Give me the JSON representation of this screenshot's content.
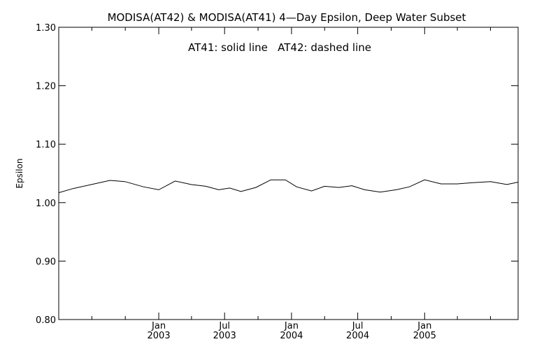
{
  "chart_data": {
    "type": "line",
    "title": "MODISA(AT42) & MODISA(AT41) 4—Day Epsilon, Deep Water Subset",
    "annotation": "AT41: solid line   AT42: dashed line",
    "xlabel": "",
    "ylabel": "Epsilon",
    "ylim": [
      0.8,
      1.3
    ],
    "xlim": [
      "2002-04-01",
      "2005-09-15"
    ],
    "yticks": [
      {
        "value": 0.8,
        "label": "0.80"
      },
      {
        "value": 0.9,
        "label": "0.90"
      },
      {
        "value": 1.0,
        "label": "1.00"
      },
      {
        "value": 1.1,
        "label": "1.10"
      },
      {
        "value": 1.2,
        "label": "1.20"
      },
      {
        "value": 1.3,
        "label": "1.30"
      }
    ],
    "xticks": [
      {
        "date": "2003-01-01",
        "label_top": "Jan",
        "label_bottom": "2003"
      },
      {
        "date": "2003-07-01",
        "label_top": "Jul",
        "label_bottom": "2003"
      },
      {
        "date": "2004-01-01",
        "label_top": "Jan",
        "label_bottom": "2004"
      },
      {
        "date": "2004-07-01",
        "label_top": "Jul",
        "label_bottom": "2004"
      },
      {
        "date": "2005-01-01",
        "label_top": "Jan",
        "label_bottom": "2005"
      }
    ],
    "minor_ticks": [
      "2002-07-01",
      "2002-10-01",
      "2003-04-01",
      "2003-10-01",
      "2004-04-01",
      "2004-10-01",
      "2005-04-01",
      "2005-07-01"
    ],
    "grid": false,
    "series": [
      {
        "style": "solid",
        "x": [
          "2002-04-01",
          "2002-05-10",
          "2002-06-30",
          "2002-08-20",
          "2002-09-30",
          "2002-11-20",
          "2003-01-01",
          "2003-02-15",
          "2003-03-31",
          "2003-05-10",
          "2003-06-15",
          "2003-07-15",
          "2003-08-15",
          "2003-09-25",
          "2003-11-05",
          "2003-12-15",
          "2004-01-15",
          "2004-02-25",
          "2004-04-01",
          "2004-05-10",
          "2004-06-15",
          "2004-07-20",
          "2004-09-01",
          "2004-10-15",
          "2004-11-20",
          "2005-01-01",
          "2005-02-15",
          "2005-04-01",
          "2005-05-10",
          "2005-07-01",
          "2005-08-15",
          "2005-09-15"
        ],
        "y": [
          1.017,
          1.024,
          1.031,
          1.038,
          1.036,
          1.027,
          1.022,
          1.037,
          1.031,
          1.028,
          1.022,
          1.025,
          1.019,
          1.026,
          1.039,
          1.039,
          1.027,
          1.02,
          1.028,
          1.026,
          1.029,
          1.022,
          1.018,
          1.022,
          1.027,
          1.039,
          1.032,
          1.032,
          1.034,
          1.036,
          1.031,
          1.035
        ]
      }
    ]
  }
}
